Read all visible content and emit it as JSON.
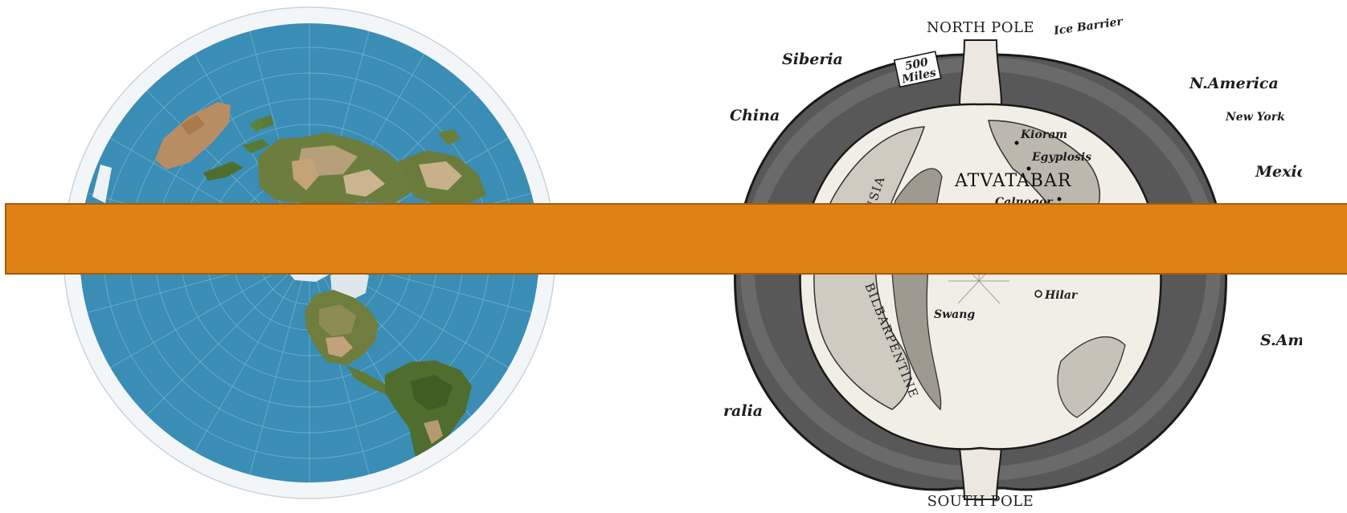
{
  "hollow_earth_map": {
    "poles": {
      "north": "NORTH POLE",
      "south": "SOUTH POLE"
    },
    "outer_labels": {
      "siberia": "Siberia",
      "china": "China",
      "australia": "Australia",
      "n_america": "N.America",
      "new_york": "New York",
      "mexico": "Mexico",
      "s_america": "S.America",
      "ice_barrier": "Ice Barrier"
    },
    "opening_label": {
      "line1": "500",
      "line2": "Miles"
    },
    "inner_labels": {
      "kioram": "Kioram",
      "egyplosis": "Egyplosis",
      "atvatabar": "ATVATABAR",
      "calnogor": "Calnogor",
      "swang": "Swang",
      "hilar": "Hilar",
      "plutusia": "PLUTUSIA",
      "bilbarpentine": "BILBARPENTINE"
    }
  },
  "colors": {
    "banner": "#e08213",
    "ocean": "#3a8db5",
    "land": "#6d7d3e",
    "shell": "#555555"
  }
}
